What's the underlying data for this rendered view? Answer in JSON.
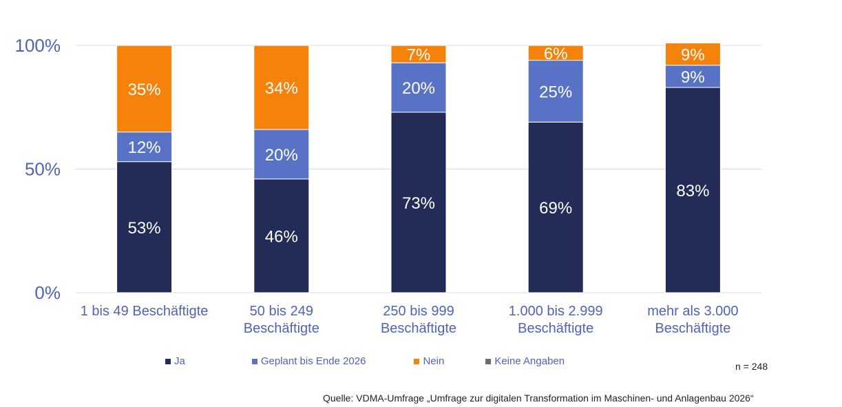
{
  "chart_data": {
    "type": "bar",
    "stacked": true,
    "categories": [
      [
        "1 bis 49 Beschäftigte"
      ],
      [
        "50 bis 249",
        "Beschäftigte"
      ],
      [
        "250 bis 999",
        "Beschäftigte"
      ],
      [
        "1.000 bis 2.999",
        "Beschäftigte"
      ],
      [
        "mehr als 3.000",
        "Beschäftigte"
      ]
    ],
    "series": [
      {
        "name": "Ja",
        "values": [
          53,
          46,
          73,
          69,
          83
        ],
        "color": "#222c57"
      },
      {
        "name": "Geplant bis Ende 2026",
        "values": [
          12,
          20,
          20,
          25,
          9
        ],
        "color": "#5873c6"
      },
      {
        "name": "Nein",
        "values": [
          35,
          34,
          7,
          6,
          9
        ],
        "color": "#f5820a"
      },
      {
        "name": "Keine Angaben",
        "values": [
          0,
          0,
          0,
          0,
          0
        ],
        "color": "#6b6b6b"
      }
    ],
    "data_labels": [
      [
        "53%",
        "46%",
        "73%",
        "69%",
        "83%"
      ],
      [
        "12%",
        "20%",
        "20%",
        "25%",
        "9%"
      ],
      [
        "35%",
        "34%",
        "7%",
        "6%",
        "9%"
      ]
    ],
    "yticks": [
      "0%",
      "50%",
      "100%"
    ],
    "ytick_values": [
      0,
      50,
      100
    ],
    "ylim": [
      0,
      100
    ],
    "grid": true,
    "legend_position": "bottom"
  },
  "annotations": {
    "sample_size": "n = 248",
    "source": "Quelle: VDMA-Umfrage „Umfrage zur digitalen Transformation im Maschinen- und Anlagenbau 2026“"
  }
}
